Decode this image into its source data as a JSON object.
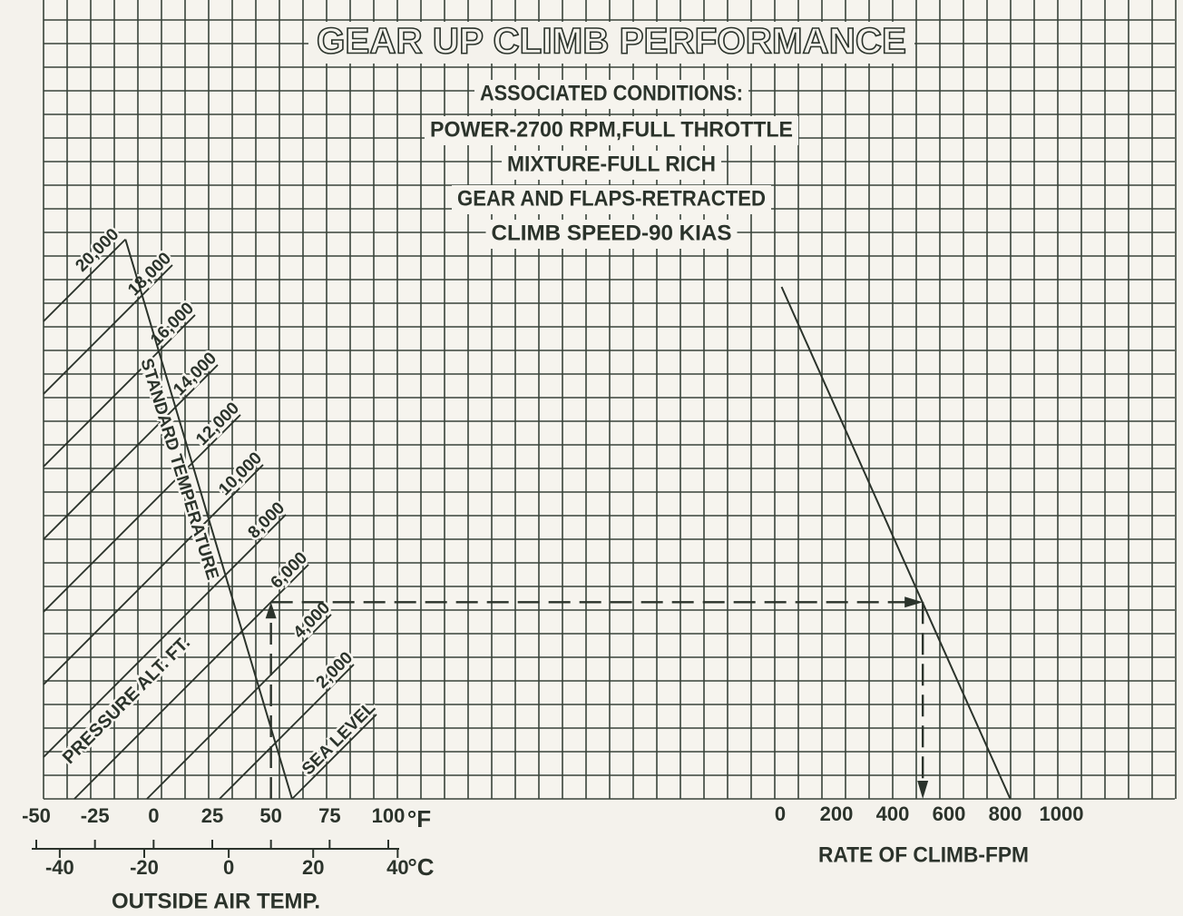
{
  "chart_data": {
    "type": "climb-nomogram",
    "title": "GEAR UP CLIMB PERFORMANCE",
    "conditions": {
      "heading": "ASSOCIATED CONDITIONS:",
      "lines": [
        "POWER-2700 RPM,FULL THROTTLE",
        "MIXTURE-FULL RICH",
        "GEAR AND FLAPS-RETRACTED",
        "CLIMB SPEED-90 KIAS"
      ]
    },
    "pressure_alt_label": "PRESSURE ALT. FT.",
    "altitude_lines": [
      {
        "value": 0,
        "label": "SEA LEVEL"
      },
      {
        "value": 2000,
        "label": "2,000"
      },
      {
        "value": 4000,
        "label": "4,000"
      },
      {
        "value": 6000,
        "label": "6,000"
      },
      {
        "value": 8000,
        "label": "8,000"
      },
      {
        "value": 10000,
        "label": "10,000"
      },
      {
        "value": 12000,
        "label": "12,000"
      },
      {
        "value": 14000,
        "label": "14,000"
      },
      {
        "value": 16000,
        "label": "16,000"
      },
      {
        "value": 18000,
        "label": "18,000"
      },
      {
        "value": 20000,
        "label": "20,000"
      }
    ],
    "standard_temperature": {
      "label": "STANDARD TEMPERATURE",
      "altitudes": [
        0,
        20000
      ],
      "temps_f": [
        59,
        -12
      ]
    },
    "f_axis": {
      "lim": [
        -50,
        100
      ],
      "ticks": [
        -50,
        -25,
        0,
        25,
        50,
        75,
        100
      ],
      "unit": "°F"
    },
    "c_axis": {
      "ticks": [
        -40,
        -20,
        0,
        20,
        40
      ],
      "unit": "°C"
    },
    "oat_label": "OUTSIDE AIR TEMP.",
    "roc_axis": {
      "lim": [
        0,
        1000
      ],
      "ticks": [
        0,
        200,
        400,
        600,
        800,
        1000
      ],
      "label": "RATE OF CLIMB-FPM"
    },
    "rate_line": {
      "density_altitude": [
        14100,
        0
      ],
      "rate": [
        5,
        818
      ]
    },
    "example": {
      "oat_f": 50,
      "pressure_alt": 6000,
      "rate": 507
    }
  }
}
